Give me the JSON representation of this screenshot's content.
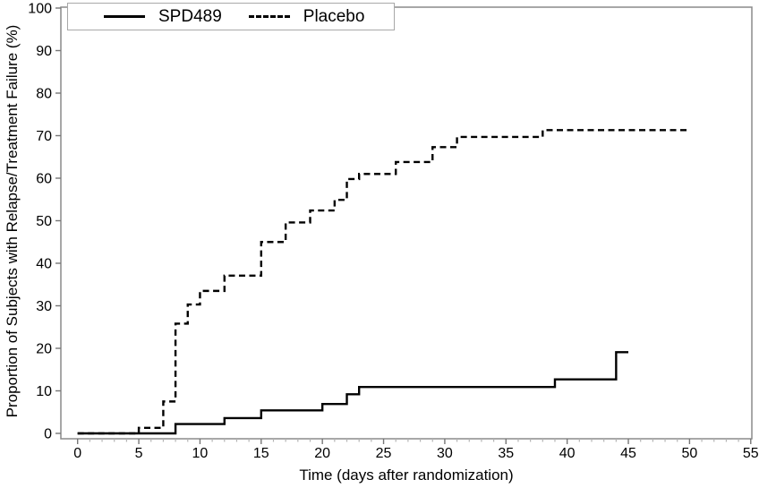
{
  "chart_data": {
    "type": "line",
    "subtype": "kaplan-meier-step",
    "title": "",
    "xlabel": "Time (days after randomization)",
    "ylabel": "Proportion of Subjects with Relapse/Treatment Failure (%)",
    "xlim": [
      0,
      55
    ],
    "ylim": [
      0,
      100
    ],
    "x_ticks": [
      0,
      5,
      10,
      15,
      20,
      25,
      30,
      35,
      40,
      45,
      50,
      55
    ],
    "y_ticks": [
      0,
      10,
      20,
      30,
      40,
      50,
      60,
      70,
      80,
      90,
      100
    ],
    "x_minor_tick_step": 1,
    "grid": false,
    "legend_position": "top-left-inside",
    "series": [
      {
        "name": "SPD489",
        "style": "solid",
        "color": "#000000",
        "points_day_pct": [
          [
            0,
            0
          ],
          [
            8,
            2.2
          ],
          [
            12,
            3.6
          ],
          [
            15,
            5.4
          ],
          [
            20,
            6.9
          ],
          [
            22,
            9.2
          ],
          [
            23,
            10.9
          ],
          [
            39,
            12.7
          ],
          [
            44,
            19.1
          ],
          [
            45,
            19.1
          ]
        ]
      },
      {
        "name": "Placebo",
        "style": "dashed",
        "color": "#000000",
        "points_day_pct": [
          [
            0,
            0
          ],
          [
            5,
            1.3
          ],
          [
            7,
            7.5
          ],
          [
            8,
            25.8
          ],
          [
            9,
            30.3
          ],
          [
            10,
            33.5
          ],
          [
            12,
            37.1
          ],
          [
            15,
            45.0
          ],
          [
            17,
            49.6
          ],
          [
            19,
            52.4
          ],
          [
            21,
            54.9
          ],
          [
            22,
            59.8
          ],
          [
            23,
            61.0
          ],
          [
            26,
            63.8
          ],
          [
            29,
            67.3
          ],
          [
            31,
            69.7
          ],
          [
            38,
            71.3
          ],
          [
            50,
            71.3
          ]
        ]
      }
    ]
  },
  "colors": {
    "curve": "#000000",
    "frame": "#8a8a8a",
    "tick_major": "#777777",
    "tick_minor": "#b3b3b3",
    "text": "#000000",
    "background": "#ffffff"
  }
}
